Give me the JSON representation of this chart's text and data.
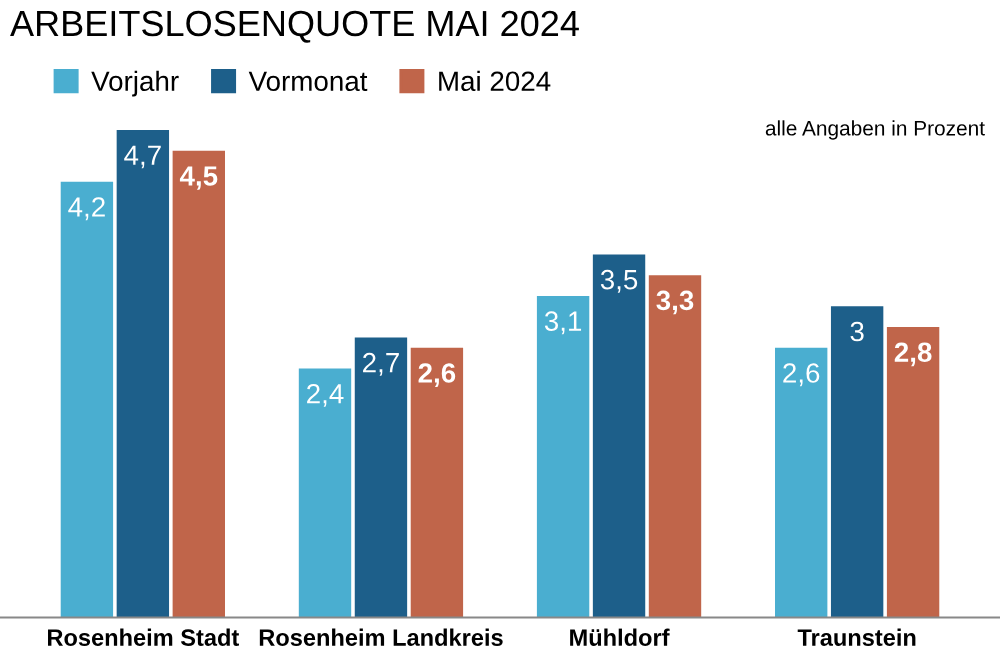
{
  "chart_data": {
    "type": "bar",
    "title": "ARBEITSLOSENQUOTE MAI 2024",
    "categories": [
      "Rosenheim Stadt",
      "Rosenheim Landkreis",
      "Mühldorf",
      "Traunstein"
    ],
    "series": [
      {
        "name": "Vorjahr",
        "color": "#4aaed0",
        "values": [
          4.2,
          2.4,
          3.1,
          2.6
        ],
        "value_labels": [
          "4,2",
          "2,4",
          "3,1",
          "2,6"
        ]
      },
      {
        "name": "Vormonat",
        "color": "#1d5f8a",
        "values": [
          4.7,
          2.7,
          3.5,
          3.0
        ],
        "value_labels": [
          "4,7",
          "2,7",
          "3,5",
          "3"
        ]
      },
      {
        "name": "Mai 2024",
        "color": "#c0654a",
        "values": [
          4.5,
          2.6,
          3.3,
          2.8
        ],
        "value_labels": [
          "4,5",
          "2,6",
          "3,3",
          "2,8"
        ]
      }
    ],
    "annotations": [
      "alle Angaben in Prozent"
    ],
    "legend": "top left",
    "grid": false
  }
}
